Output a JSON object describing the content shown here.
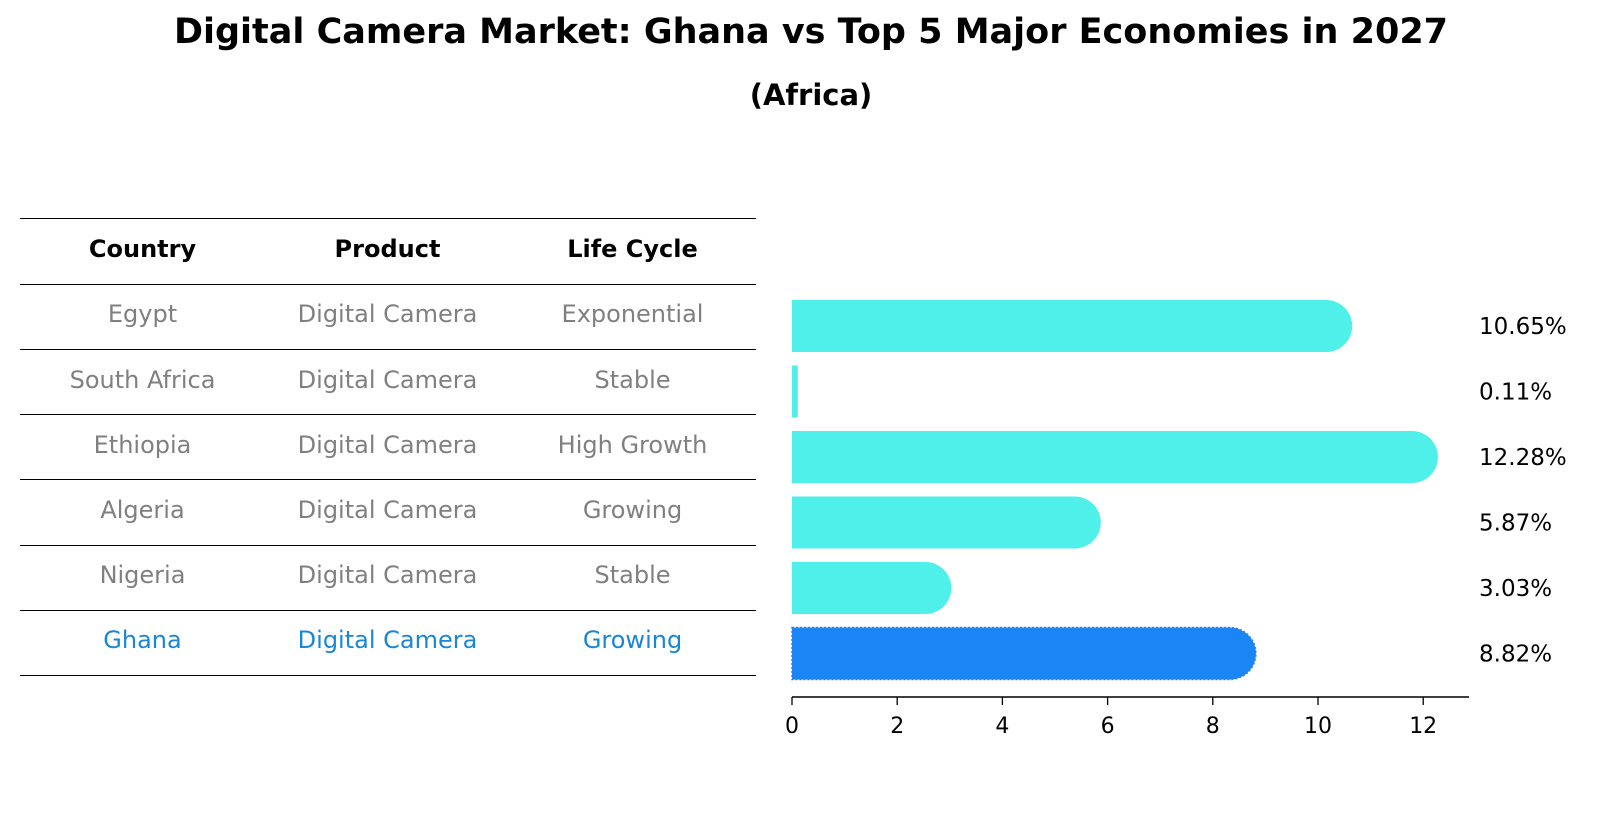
{
  "header": {
    "title": "Digital Camera Market: Ghana vs Top 5 Major Economies in 2027",
    "subtitle": "(Africa)"
  },
  "table": {
    "columns": [
      "Country",
      "Product",
      "Life Cycle"
    ],
    "rows": [
      {
        "country": "Egypt",
        "product": "Digital Camera",
        "life_cycle": "Exponential",
        "highlight": false
      },
      {
        "country": "South Africa",
        "product": "Digital Camera",
        "life_cycle": "Stable",
        "highlight": false
      },
      {
        "country": "Ethiopia",
        "product": "Digital Camera",
        "life_cycle": "High Growth",
        "highlight": false
      },
      {
        "country": "Algeria",
        "product": "Digital Camera",
        "life_cycle": "Growing",
        "highlight": false
      },
      {
        "country": "Nigeria",
        "product": "Digital Camera",
        "life_cycle": "Stable",
        "highlight": false
      },
      {
        "country": "Ghana",
        "product": "Digital Camera",
        "life_cycle": "Growing",
        "highlight": true
      }
    ]
  },
  "colors": {
    "bar": "#4ff0ea",
    "highlight_bar": "#1a86f5",
    "highlight_text": "#1a86d8",
    "muted_text": "#808080"
  },
  "chart_data": {
    "type": "bar",
    "orientation": "horizontal",
    "categories": [
      "Egypt",
      "South Africa",
      "Ethiopia",
      "Algeria",
      "Nigeria",
      "Ghana"
    ],
    "values": [
      10.65,
      0.11,
      12.28,
      5.87,
      3.03,
      8.82
    ],
    "value_labels": [
      "10.65%",
      "0.11%",
      "12.28%",
      "5.87%",
      "3.03%",
      "8.82%"
    ],
    "highlight_index": 5,
    "xlim": [
      0,
      12.9
    ],
    "xticks": [
      0,
      2,
      4,
      6,
      8,
      10,
      12
    ],
    "xlabel": "",
    "ylabel": "",
    "grid": false
  }
}
